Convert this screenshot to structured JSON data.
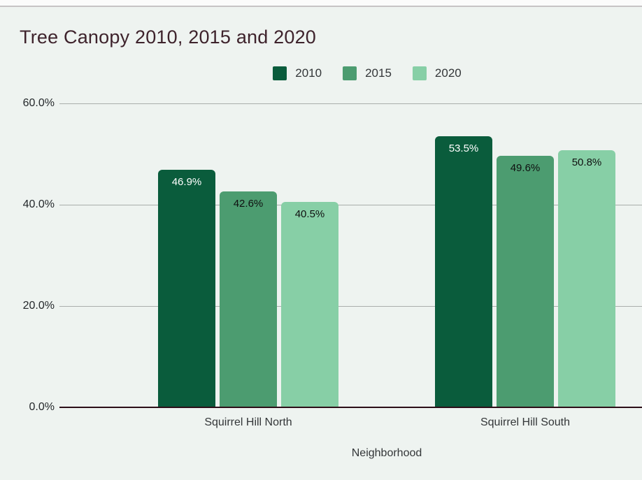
{
  "frame": {
    "top_strip_color": "#fbfbfb",
    "divider_color": "#c7c3c5",
    "background": "#eef3f0"
  },
  "chart_data": {
    "type": "bar",
    "title": "Tree Canopy 2010, 2015 and 2020",
    "title_color": "#3e232c",
    "xlabel": "Neighborhood",
    "categories": [
      "Squirrel Hill North",
      "Squirrel Hill South"
    ],
    "series": [
      {
        "name": "2010",
        "color": "#0a5c3c",
        "label_color": "#ffffff",
        "values": [
          46.9,
          53.5
        ],
        "labels": [
          "46.9%",
          "53.5%"
        ]
      },
      {
        "name": "2015",
        "color": "#4c9c70",
        "label_color": "#0f1010",
        "values": [
          42.6,
          49.6
        ],
        "labels": [
          "42.6%",
          "49.6%"
        ]
      },
      {
        "name": "2020",
        "color": "#87cfa6",
        "label_color": "#0f1010",
        "values": [
          40.5,
          50.8
        ],
        "labels": [
          "40.5%",
          "50.8%"
        ]
      }
    ],
    "y_ticks": [
      {
        "value": 0,
        "label": "0.0%"
      },
      {
        "value": 20,
        "label": "20.0%"
      },
      {
        "value": 40,
        "label": "40.0%"
      },
      {
        "value": 60,
        "label": "60.0%"
      }
    ],
    "ylim": [
      0,
      60
    ],
    "grid": true,
    "legend_position": "top",
    "gridline_color": "#a9adab",
    "axis_line_color": "#2c0e18"
  }
}
